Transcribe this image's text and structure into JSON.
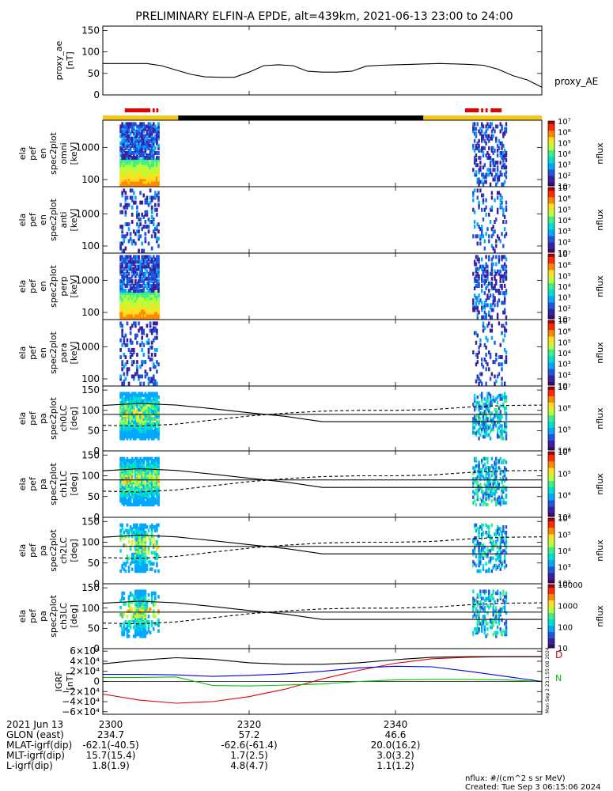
{
  "title": "PRELIMINARY ELFIN-A EPDE, alt=439km, 2021-06-13 23:00 to 24:00",
  "colors": {
    "sunlit": "#f5c71a",
    "shadow": "#000000",
    "science": "#e00000",
    "bx": "#e00000",
    "by": "#00c000",
    "bz": "#0000e0"
  },
  "chart_data": [
    {
      "type": "line",
      "panel": "proxy_ae",
      "ylabel": [
        "proxy_ae",
        "[nT]"
      ],
      "series_label": "proxy_AE",
      "ylim": [
        0,
        160
      ],
      "yticks": [
        0,
        50,
        100,
        150
      ],
      "x_minutes": [
        0,
        2,
        4,
        6,
        8,
        10,
        12,
        14,
        16,
        18,
        20,
        22,
        24,
        26,
        28,
        30,
        32,
        34,
        36,
        38,
        40,
        42,
        44,
        46,
        48,
        50,
        52,
        54,
        56,
        58,
        60
      ],
      "values": [
        73,
        73,
        73,
        73,
        68,
        58,
        48,
        42,
        41,
        41,
        53,
        68,
        70,
        68,
        55,
        53,
        53,
        55,
        67,
        69,
        70,
        71,
        72,
        73,
        72,
        71,
        69,
        60,
        45,
        35,
        18
      ]
    },
    {
      "type": "heatmap",
      "panel": "omni",
      "ylabel": [
        "ela",
        "pef",
        "en",
        "spec2plot",
        "omni",
        "[keV]"
      ],
      "y_scale": "log",
      "ylim": [
        60,
        7000
      ],
      "yticks": [
        100,
        1000
      ],
      "yticklabels": [
        "100",
        "1000"
      ],
      "colorbar": {
        "label": "nflux",
        "min": 10,
        "max": 10000000,
        "ticks": [
          "10",
          "10²",
          "10³",
          "10⁴",
          "10⁵",
          "10⁶",
          "10⁷"
        ]
      }
    },
    {
      "type": "heatmap",
      "panel": "anti",
      "ylabel": [
        "ela",
        "pef",
        "en",
        "spec2plot",
        "anti",
        "[keV]"
      ],
      "y_scale": "log",
      "ylim": [
        60,
        7000
      ],
      "yticks": [
        100,
        1000
      ],
      "yticklabels": [
        "100",
        "1000"
      ],
      "colorbar": {
        "label": "nflux",
        "min": 10,
        "max": 10000000,
        "ticks": [
          "10",
          "10²",
          "10³",
          "10⁴",
          "10⁵",
          "10⁶",
          "10⁷"
        ]
      }
    },
    {
      "type": "heatmap",
      "panel": "perp",
      "ylabel": [
        "ela",
        "pef",
        "en",
        "spec2plot",
        "perp",
        "[keV]"
      ],
      "y_scale": "log",
      "ylim": [
        60,
        7000
      ],
      "yticks": [
        100,
        1000
      ],
      "yticklabels": [
        "100",
        "1000"
      ],
      "colorbar": {
        "label": "nflux",
        "min": 10,
        "max": 10000000,
        "ticks": [
          "10",
          "10²",
          "10³",
          "10⁴",
          "10⁵",
          "10⁶",
          "10⁷"
        ]
      }
    },
    {
      "type": "heatmap",
      "panel": "para",
      "ylabel": [
        "ela",
        "pef",
        "en",
        "spec2plot",
        "para",
        "[keV]"
      ],
      "y_scale": "log",
      "ylim": [
        60,
        7000
      ],
      "yticks": [
        100,
        1000
      ],
      "yticklabels": [
        "100",
        "1000"
      ],
      "colorbar": {
        "label": "nflux",
        "min": 10,
        "max": 10000000,
        "ticks": [
          "10",
          "10²",
          "10³",
          "10⁴",
          "10⁵",
          "10⁶",
          "10⁷"
        ]
      }
    },
    {
      "type": "heatmap",
      "panel": "ch0LC",
      "ylabel": [
        "ela",
        "pef",
        "pa",
        "spec2plot",
        "ch0LC",
        "[deg]"
      ],
      "ylim": [
        0,
        160
      ],
      "yticks": [
        0,
        50,
        100,
        150
      ],
      "colorbar": {
        "label": "nflux",
        "min": 1000,
        "max": 10000000,
        "ticks": [
          "10⁴",
          "10⁵",
          "10⁶",
          "10⁷"
        ]
      }
    },
    {
      "type": "heatmap",
      "panel": "ch1LC",
      "ylabel": [
        "ela",
        "pef",
        "pa",
        "spec2plot",
        "ch1LC",
        "[deg]"
      ],
      "ylim": [
        0,
        160
      ],
      "yticks": [
        0,
        50,
        100,
        150
      ],
      "colorbar": {
        "label": "nflux",
        "min": 1000,
        "max": 3000000,
        "ticks": [
          "10³",
          "10⁴",
          "10⁵",
          "10⁶"
        ]
      }
    },
    {
      "type": "heatmap",
      "panel": "ch2LC",
      "ylabel": [
        "ela",
        "pef",
        "pa",
        "spec2plot",
        "ch2LC",
        "[deg]"
      ],
      "ylim": [
        0,
        160
      ],
      "yticks": [
        0,
        50,
        100,
        150
      ],
      "colorbar": {
        "label": "nflux",
        "min": 100,
        "max": 3000000,
        "ticks": [
          "10²",
          "10³",
          "10⁴",
          "10⁵",
          "10⁶"
        ]
      }
    },
    {
      "type": "heatmap",
      "panel": "ch3LC",
      "ylabel": [
        "ela",
        "pef",
        "pa",
        "spec2plot",
        "ch3LC",
        "[deg]"
      ],
      "ylim": [
        0,
        160
      ],
      "yticks": [
        0,
        50,
        100,
        150
      ],
      "colorbar": {
        "label": "nflux",
        "min": 10,
        "max": 10000,
        "ticks": [
          "10",
          "100",
          "1000",
          "10000"
        ]
      }
    },
    {
      "type": "line",
      "panel": "IGRF",
      "ylabel": [
        "IGRF",
        "[nT]"
      ],
      "ylim": [
        -65000,
        65000
      ],
      "yticks": [
        -60000,
        -40000,
        -20000,
        0,
        20000,
        40000,
        60000
      ],
      "yticklabels": [
        "−6×10⁴",
        "−4×10⁴",
        "−2×10⁴",
        "0",
        "2×10⁴",
        "4×10⁴",
        "6×10⁴"
      ],
      "x_minutes": [
        0,
        5,
        10,
        15,
        20,
        25,
        30,
        35,
        40,
        45,
        50,
        55,
        60
      ],
      "series": [
        {
          "label": "D",
          "color": "#e00000",
          "values": [
            -25000,
            -37000,
            -43000,
            -40000,
            -30000,
            -15000,
            5000,
            22000,
            36000,
            45000,
            48000,
            49000,
            49000
          ]
        },
        {
          "label": "N",
          "color": "#00c000",
          "values": [
            8000,
            8000,
            9000,
            -8000,
            -9000,
            -7000,
            -5000,
            0,
            3000,
            4000,
            4000,
            3000,
            0
          ]
        },
        {
          "label": "",
          "color": "#0000e0",
          "values": [
            14000,
            14000,
            13000,
            10000,
            12000,
            15000,
            20000,
            27000,
            30000,
            29000,
            20000,
            10000,
            0
          ]
        },
        {
          "label": "",
          "color": "#000000",
          "values": [
            35000,
            42000,
            47000,
            44000,
            37000,
            34000,
            34000,
            37000,
            43000,
            48000,
            49000,
            49000,
            49000
          ]
        }
      ]
    }
  ],
  "pa_lines": {
    "x_minutes": [
      0,
      5,
      10,
      15,
      20,
      25,
      30,
      35,
      40,
      45,
      50,
      55,
      60
    ],
    "loss_cone_solid": [
      112,
      117,
      113,
      104,
      94,
      85,
      72,
      72,
      72,
      72,
      72,
      72,
      72
    ],
    "loss_cone_dashed": [
      63,
      61,
      66,
      76,
      86,
      93,
      98,
      100,
      100,
      102,
      108,
      112,
      113
    ],
    "ninety_line": 90
  },
  "activity": {
    "left_minutes": [
      2.3,
      7.7
    ],
    "right_minutes": [
      50.5,
      55.2
    ]
  },
  "bars": {
    "sunlit_minutes": [
      [
        0,
        10.3
      ],
      [
        43.8,
        60
      ]
    ],
    "shadow_minutes": [
      [
        10.3,
        43.8
      ]
    ],
    "science_minutes": [
      [
        3.0,
        6.5
      ],
      [
        6.8,
        7.1
      ],
      [
        7.3,
        7.6
      ],
      [
        49.5,
        51.4
      ],
      [
        51.7,
        52.0
      ],
      [
        52.3,
        52.6
      ],
      [
        53.0,
        54.5
      ]
    ]
  },
  "igrf_side_labels": {
    "d": "D",
    "n": "N"
  },
  "footer": {
    "row_labels": [
      "2021 Jun 13",
      "GLON (east)",
      "MLAT-igrf(dip)",
      "MLT-igrf(dip)",
      "L-igrf(dip)"
    ],
    "col1": [
      "2300",
      "234.7",
      "-62.1(-40.5)",
      "15.7(15.4)",
      "1.8(1.9)"
    ],
    "col2": [
      "2320",
      "57.2",
      "-62.6(-61.4)",
      "1.7(2.5)",
      "4.8(4.7)"
    ],
    "col3": [
      "2340",
      "46.6",
      "20.0(16.2)",
      "3.0(3.2)",
      "1.1(1.2)"
    ],
    "nflux_units": "nflux: #/(cm^2 s sr MeV)",
    "created": "Created: Tue Sep  3 06:15:06 2024",
    "side_stamp": "Mon Sep  2 23:1:55:08 2024"
  }
}
